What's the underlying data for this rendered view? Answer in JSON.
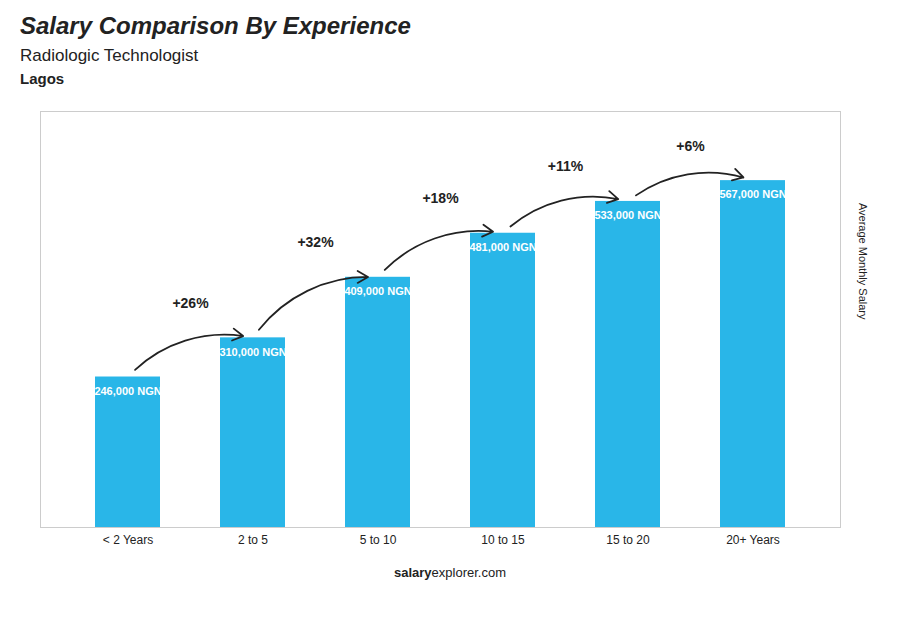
{
  "chart_data": {
    "type": "bar",
    "title": "Salary Comparison By Experience",
    "subtitle": "Radiologic Technologist",
    "city": "Lagos",
    "ylabel": "Average Monthly Salary",
    "categories": [
      "< 2 Years",
      "2 to 5",
      "5 to 10",
      "10 to 15",
      "15 to 20",
      "20+ Years"
    ],
    "values": [
      246000,
      310000,
      409000,
      481000,
      533000,
      567000
    ],
    "value_labels": [
      "246,000 NGN",
      "310,000 NGN",
      "409,000 NGN",
      "481,000 NGN",
      "533,000 NGN",
      "567,000 NGN"
    ],
    "data_labels": true,
    "annotations": [
      "+26%",
      "+32%",
      "+18%",
      "+11%",
      "+6%"
    ],
    "color": "#29b6e8",
    "ylim": [
      0,
      680000
    ],
    "tick_labels": "x",
    "watermark": [
      "salary",
      "explorer.com"
    ]
  }
}
